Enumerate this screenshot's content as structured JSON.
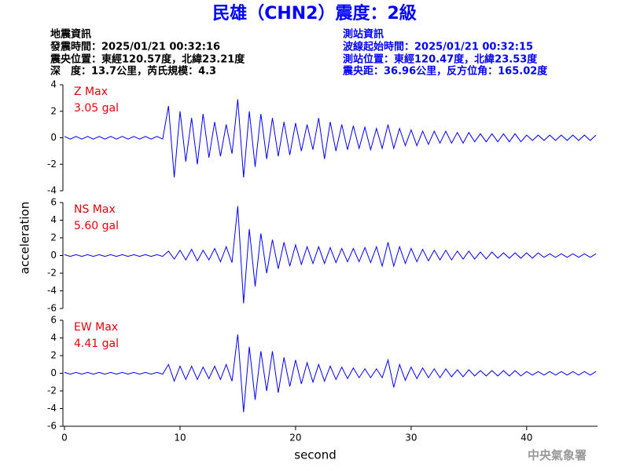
{
  "header": {
    "title": "民雄（CHN2）震度：2級",
    "left": [
      "地震資訊",
      "發震時間：2025/01/21 00:32:16",
      "震央位置：東經120.57度，北緯23.21度",
      "深　度：13.7公里，芮氏規模：4.3"
    ],
    "right": [
      "測站資訊",
      "波線起始時間：2025/01/21 00:32:15",
      "測站位置：東經120.47度，北緯23.53度",
      "震央距：36.96公里，反方位角：165.02度"
    ]
  },
  "footer": "中央氣象署",
  "chart_data": [
    {
      "type": "line",
      "annotations": [
        "Z Max",
        "3.05 gal"
      ],
      "annotation_color": "#e8000b",
      "xlim": [
        0,
        46
      ],
      "ylim": [
        -4,
        4
      ],
      "yticks": [
        -4,
        -2,
        0,
        2,
        4
      ],
      "x": [
        0,
        0.5,
        1,
        1.5,
        2,
        2.5,
        3,
        3.5,
        4,
        4.5,
        5,
        5.5,
        6,
        6.5,
        7,
        7.5,
        8,
        8.5,
        9,
        9.5,
        10,
        10.5,
        11,
        11.5,
        12,
        12.5,
        13,
        13.5,
        14,
        14.5,
        15,
        15.5,
        16,
        16.5,
        17,
        17.5,
        18,
        18.5,
        19,
        19.5,
        20,
        20.5,
        21,
        21.5,
        22,
        22.5,
        23,
        23.5,
        24,
        24.5,
        25,
        25.5,
        26,
        26.5,
        27,
        27.5,
        28,
        28.5,
        29,
        29.5,
        30,
        30.5,
        31,
        31.5,
        32,
        32.5,
        33,
        33.5,
        34,
        34.5,
        35,
        35.5,
        36,
        36.5,
        37,
        37.5,
        38,
        38.5,
        39,
        39.5,
        40,
        40.5,
        41,
        41.5,
        42,
        42.5,
        43,
        43.5,
        44,
        44.5,
        45,
        45.5,
        46
      ],
      "series": [
        {
          "color": "#0000ff",
          "values": [
            0.1,
            -0.1,
            0.1,
            -0.1,
            0.1,
            -0.1,
            0.1,
            -0.1,
            0.1,
            -0.1,
            0.1,
            -0.1,
            0.1,
            -0.1,
            0.1,
            -0.1,
            0.1,
            -0.1,
            2.4,
            -3.0,
            2.0,
            -1.8,
            1.5,
            -2.0,
            1.8,
            -1.5,
            1.2,
            -1.4,
            1.0,
            -1.2,
            2.9,
            -3.0,
            2.0,
            -2.2,
            1.8,
            -1.6,
            1.5,
            -1.4,
            1.2,
            -1.3,
            1.1,
            -1.0,
            1.0,
            -0.9,
            1.5,
            -1.6,
            1.2,
            -1.0,
            1.0,
            -0.9,
            0.9,
            -0.8,
            0.8,
            -0.9,
            0.7,
            -0.8,
            1.0,
            -0.8,
            0.7,
            -0.6,
            0.6,
            -0.6,
            0.5,
            -0.5,
            0.5,
            -0.4,
            0.5,
            -0.4,
            0.4,
            -0.4,
            0.4,
            -0.3,
            0.3,
            -0.3,
            0.3,
            -0.3,
            0.3,
            -0.3,
            0.3,
            -0.3,
            0.2,
            -0.2,
            0.2,
            -0.2,
            0.2,
            -0.2,
            0.2,
            -0.2,
            0.2,
            -0.2,
            0.2,
            -0.2,
            0.2
          ]
        }
      ]
    },
    {
      "type": "line",
      "annotations": [
        "NS Max",
        "5.60 gal"
      ],
      "annotation_color": "#e8000b",
      "ylabel": "acceleration",
      "xlim": [
        0,
        46
      ],
      "ylim": [
        -6,
        6
      ],
      "yticks": [
        -6,
        -4,
        -2,
        0,
        2,
        4,
        6
      ],
      "x": [
        0,
        0.5,
        1,
        1.5,
        2,
        2.5,
        3,
        3.5,
        4,
        4.5,
        5,
        5.5,
        6,
        6.5,
        7,
        7.5,
        8,
        8.5,
        9,
        9.5,
        10,
        10.5,
        11,
        11.5,
        12,
        12.5,
        13,
        13.5,
        14,
        14.5,
        15,
        15.5,
        16,
        16.5,
        17,
        17.5,
        18,
        18.5,
        19,
        19.5,
        20,
        20.5,
        21,
        21.5,
        22,
        22.5,
        23,
        23.5,
        24,
        24.5,
        25,
        25.5,
        26,
        26.5,
        27,
        27.5,
        28,
        28.5,
        29,
        29.5,
        30,
        30.5,
        31,
        31.5,
        32,
        32.5,
        33,
        33.5,
        34,
        34.5,
        35,
        35.5,
        36,
        36.5,
        37,
        37.5,
        38,
        38.5,
        39,
        39.5,
        40,
        40.5,
        41,
        41.5,
        42,
        42.5,
        43,
        43.5,
        44,
        44.5,
        45,
        45.5,
        46
      ],
      "series": [
        {
          "color": "#0000ff",
          "values": [
            0.1,
            -0.1,
            0.1,
            -0.1,
            0.1,
            -0.1,
            0.1,
            -0.1,
            0.1,
            -0.1,
            0.1,
            -0.1,
            0.1,
            -0.1,
            0.1,
            -0.1,
            0.1,
            -0.1,
            0.5,
            -0.4,
            0.6,
            -0.5,
            0.7,
            -0.6,
            0.6,
            -0.5,
            0.8,
            -0.7,
            1.0,
            -0.8,
            5.6,
            -5.4,
            3.0,
            -3.5,
            2.5,
            -2.0,
            1.8,
            -1.5,
            1.5,
            -1.2,
            1.2,
            -1.0,
            1.0,
            -0.9,
            1.0,
            -0.9,
            0.9,
            -0.8,
            0.8,
            -0.7,
            0.8,
            -0.7,
            0.9,
            -0.8,
            1.0,
            -1.2,
            1.5,
            -1.2,
            1.0,
            -0.9,
            0.8,
            -0.7,
            0.7,
            -0.6,
            0.6,
            -0.5,
            0.6,
            -0.5,
            0.5,
            -0.4,
            0.5,
            -0.4,
            0.4,
            -0.4,
            0.4,
            -0.3,
            0.3,
            -0.3,
            0.3,
            -0.3,
            0.3,
            -0.3,
            0.3,
            -0.2,
            0.2,
            -0.2,
            0.2,
            -0.2,
            0.2,
            -0.2,
            0.2,
            -0.2,
            0.2
          ]
        }
      ]
    },
    {
      "type": "line",
      "annotations": [
        "EW Max",
        "4.41 gal"
      ],
      "annotation_color": "#e8000b",
      "xlabel": "second",
      "xlim": [
        0,
        46
      ],
      "xticks": [
        0,
        10,
        20,
        30,
        40
      ],
      "ylim": [
        -6,
        6
      ],
      "yticks": [
        -6,
        -4,
        -2,
        0,
        2,
        4,
        6
      ],
      "x": [
        0,
        0.5,
        1,
        1.5,
        2,
        2.5,
        3,
        3.5,
        4,
        4.5,
        5,
        5.5,
        6,
        6.5,
        7,
        7.5,
        8,
        8.5,
        9,
        9.5,
        10,
        10.5,
        11,
        11.5,
        12,
        12.5,
        13,
        13.5,
        14,
        14.5,
        15,
        15.5,
        16,
        16.5,
        17,
        17.5,
        18,
        18.5,
        19,
        19.5,
        20,
        20.5,
        21,
        21.5,
        22,
        22.5,
        23,
        23.5,
        24,
        24.5,
        25,
        25.5,
        26,
        26.5,
        27,
        27.5,
        28,
        28.5,
        29,
        29.5,
        30,
        30.5,
        31,
        31.5,
        32,
        32.5,
        33,
        33.5,
        34,
        34.5,
        35,
        35.5,
        36,
        36.5,
        37,
        37.5,
        38,
        38.5,
        39,
        39.5,
        40,
        40.5,
        41,
        41.5,
        42,
        42.5,
        43,
        43.5,
        44,
        44.5,
        45,
        45.5,
        46
      ],
      "series": [
        {
          "color": "#0000ff",
          "values": [
            0.1,
            -0.1,
            0.1,
            -0.1,
            0.1,
            -0.1,
            0.1,
            -0.1,
            0.1,
            -0.1,
            0.1,
            -0.1,
            0.1,
            -0.1,
            0.1,
            -0.1,
            0.1,
            -0.1,
            1.0,
            -0.9,
            0.8,
            -0.7,
            0.8,
            -0.7,
            0.7,
            -0.6,
            0.8,
            -0.7,
            1.0,
            -0.9,
            4.4,
            -4.4,
            3.0,
            -3.0,
            2.5,
            -2.0,
            2.5,
            -2.2,
            1.8,
            -1.5,
            1.5,
            -1.2,
            1.2,
            -1.0,
            1.0,
            -0.9,
            0.8,
            -0.7,
            0.7,
            -0.6,
            0.6,
            -0.5,
            0.5,
            -0.5,
            0.5,
            -0.5,
            1.5,
            -1.6,
            1.0,
            -0.8,
            0.7,
            -0.6,
            0.6,
            -0.5,
            0.5,
            -0.5,
            0.5,
            -0.4,
            0.4,
            -0.4,
            0.4,
            -0.3,
            0.3,
            -0.3,
            0.3,
            -0.3,
            0.3,
            -0.3,
            0.3,
            -0.3,
            0.2,
            -0.2,
            0.2,
            -0.2,
            0.2,
            -0.2,
            0.2,
            -0.2,
            0.2,
            -0.2,
            0.2,
            -0.2,
            0.2
          ]
        }
      ]
    }
  ]
}
